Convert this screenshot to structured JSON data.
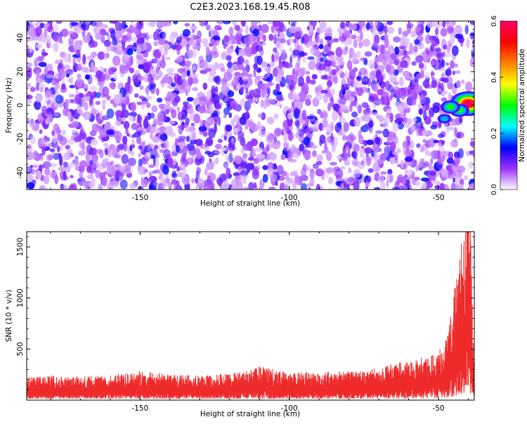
{
  "figure": {
    "title": "C2E3.2023.168.19.45.R08"
  },
  "chart_data": [
    {
      "type": "heatmap",
      "xlabel": "Height of straight line (km)",
      "ylabel": "Frequency (Hz)",
      "xlim": [
        -188,
        -38
      ],
      "ylim": [
        -50,
        50
      ],
      "x_ticks": [
        -150,
        -100,
        -50
      ],
      "x_tick_labels": [
        "-150",
        "-100",
        "-50"
      ],
      "y_ticks": [
        -40,
        -20,
        0,
        20,
        40
      ],
      "y_tick_labels": [
        "-40",
        "-20",
        "0",
        "20",
        "40"
      ],
      "colorbar": {
        "label": "Normalized spectral amplitude",
        "range": [
          0.0,
          0.6
        ],
        "ticks": [
          0.0,
          0.2,
          0.4,
          0.6
        ],
        "tick_labels": [
          "0.0",
          "0.2",
          "0.4",
          "0.6"
        ],
        "colormap": [
          "#ffffff",
          "#9b30ff",
          "#0000ff",
          "#00ffff",
          "#00ff00",
          "#ffff00",
          "#ff8000",
          "#ff0000",
          "#ff0066"
        ]
      },
      "background_level": "weak noise 0.05–0.15 across all heights",
      "hotspots": [
        {
          "x": -40,
          "y": 1,
          "amplitude": 0.6
        },
        {
          "x": -43,
          "y": -3,
          "amplitude": 0.35
        },
        {
          "x": -46,
          "y": -1,
          "amplitude": 0.3
        },
        {
          "x": -48,
          "y": -8,
          "amplitude": 0.2
        },
        {
          "x": -60,
          "y": -32,
          "amplitude": 0.18
        },
        {
          "x": -73,
          "y": -22,
          "amplitude": 0.17
        },
        {
          "x": -160,
          "y": -16,
          "amplitude": 0.15
        },
        {
          "x": -129,
          "y": -14,
          "amplitude": 0.15
        }
      ],
      "grid": false
    },
    {
      "type": "line",
      "xlabel": "Height of straight line (km)",
      "ylabel": "SNR (10 * v/v)",
      "xlim": [
        -188,
        -38
      ],
      "ylim": [
        0,
        1650
      ],
      "x_ticks": [
        -150,
        -100,
        -50
      ],
      "x_tick_labels": [
        "-150",
        "-100",
        "-50"
      ],
      "y_ticks": [
        500,
        1000,
        1500
      ],
      "y_tick_labels": [
        "500",
        "1000",
        "1500"
      ],
      "color": "#ee2a2a",
      "series": [
        {
          "x": [
            -188,
            -180,
            -170,
            -160,
            -150,
            -140,
            -130,
            -120,
            -115,
            -110,
            -105,
            -100,
            -90,
            -80,
            -70,
            -65,
            -60,
            -55,
            -50,
            -47,
            -45,
            -43,
            -41,
            -40,
            -39,
            -38
          ],
          "values": [
            150,
            160,
            155,
            165,
            190,
            170,
            160,
            175,
            185,
            230,
            200,
            180,
            185,
            190,
            210,
            240,
            260,
            280,
            320,
            420,
            700,
            950,
            1250,
            1600,
            900,
            250
          ]
        }
      ],
      "grid": false
    }
  ]
}
